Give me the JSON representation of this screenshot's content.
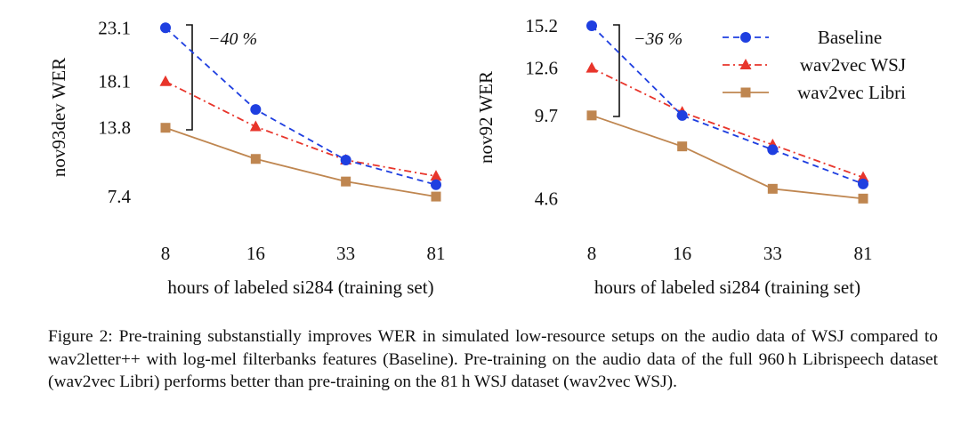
{
  "chart_data": [
    {
      "type": "line",
      "ylabel": "nov93dev WER",
      "xlabel": "hours of labeled si284 (training set)",
      "categories": [
        "8",
        "16",
        "33",
        "81"
      ],
      "yticks": [
        "23.1",
        "18.1",
        "13.8",
        "7.4"
      ],
      "ylim": [
        6.0,
        24.2
      ],
      "annotation": "−40 %",
      "series": [
        {
          "name": "Baseline",
          "values": [
            23.1,
            15.5,
            10.8,
            8.5
          ]
        },
        {
          "name": "wav2vec WSJ",
          "values": [
            18.1,
            13.9,
            10.8,
            9.3
          ]
        },
        {
          "name": "wav2vec Libri",
          "values": [
            13.8,
            10.9,
            8.8,
            7.4
          ]
        }
      ]
    },
    {
      "type": "line",
      "ylabel": "nov92 WER",
      "xlabel": "hours of labeled si284 (training set)",
      "categories": [
        "8",
        "16",
        "33",
        "81"
      ],
      "yticks": [
        "15.2",
        "12.6",
        "9.7",
        "4.6"
      ],
      "ylim": [
        3.8,
        15.8
      ],
      "annotation": "−36 %",
      "legend_position": "top-right",
      "series": [
        {
          "name": "Baseline",
          "values": [
            15.2,
            9.7,
            7.6,
            5.5
          ]
        },
        {
          "name": "wav2vec WSJ",
          "values": [
            12.6,
            9.9,
            7.9,
            5.9
          ]
        },
        {
          "name": "wav2vec Libri",
          "values": [
            9.7,
            7.8,
            5.2,
            4.6
          ]
        }
      ]
    }
  ],
  "styles": {
    "series_colors": [
      "#1f3fe0",
      "#e8352b",
      "#bf8650"
    ]
  },
  "caption": "Figure 2: Pre-training substanstially improves WER in simulated low-resource setups on the audio data of WSJ compared to wav2letter++ with log-mel filterbanks features (Baseline). Pre-training on the audio data of the full 960 h Librispeech dataset (wav2vec Libri) performs better than pre-training on the 81 h WSJ dataset (wav2vec WSJ)."
}
